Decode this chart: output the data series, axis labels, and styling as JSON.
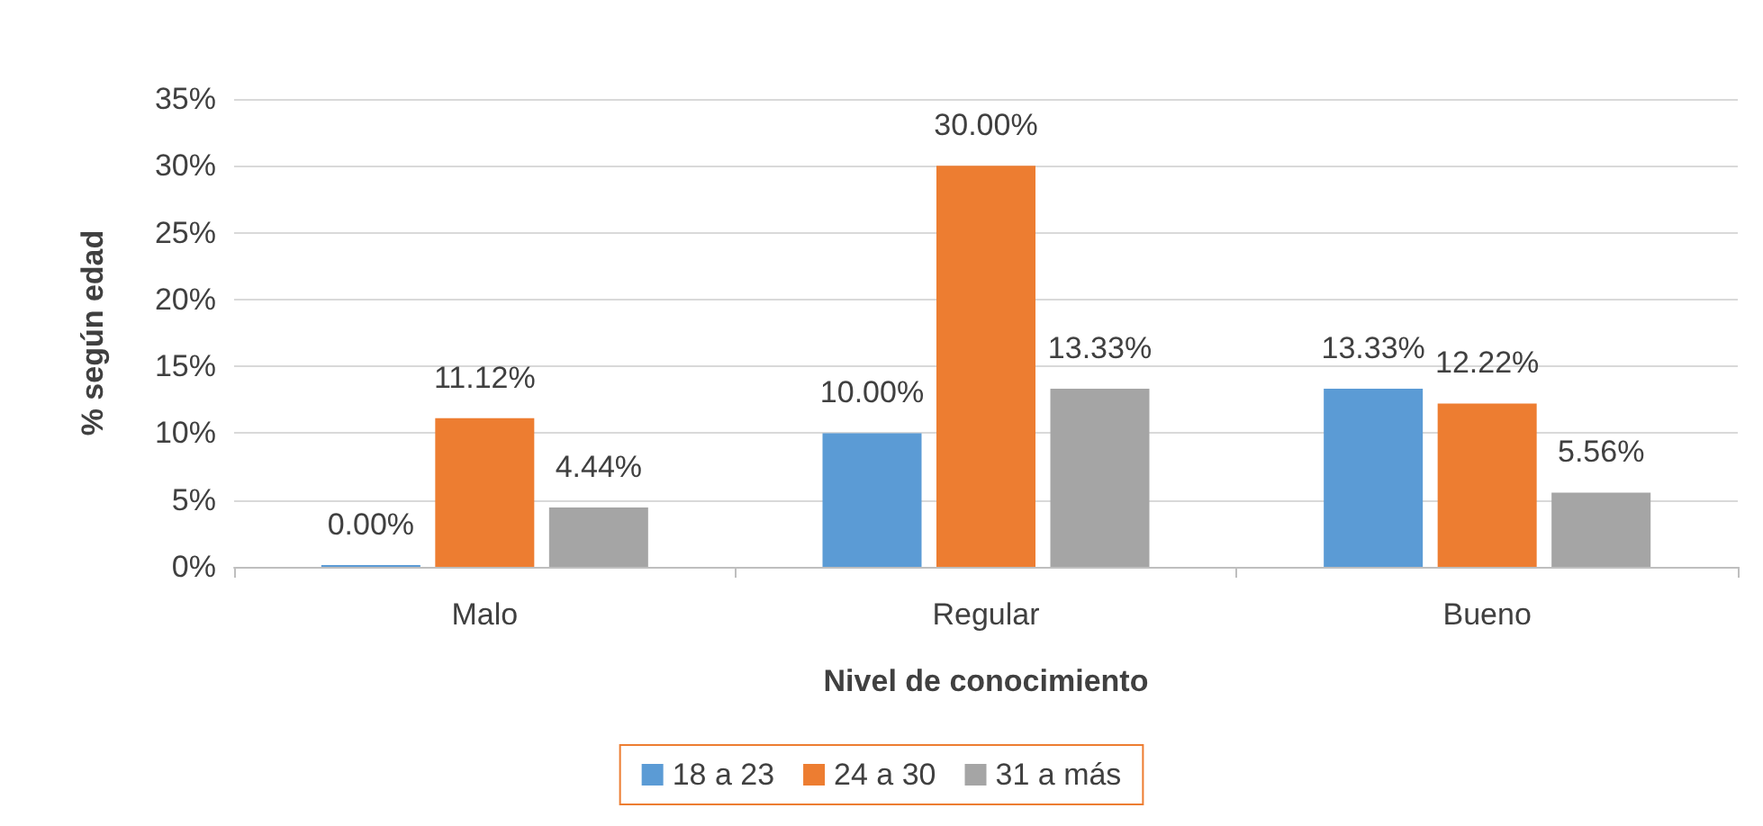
{
  "chart_data": {
    "type": "bar",
    "xlabel": "Nivel de conocimiento",
    "ylabel": "% según edad",
    "categories": [
      "Malo",
      "Regular",
      "Bueno"
    ],
    "series": [
      {
        "name": "18 a 23",
        "color": "#5b9bd5",
        "values": [
          0,
          10,
          13.33
        ],
        "value_labels": [
          "0.00%",
          "10.00%",
          "13.33%"
        ]
      },
      {
        "name": "24 a 30",
        "color": "#ed7d31",
        "values": [
          11.12,
          30,
          12.22
        ],
        "value_labels": [
          "11.12%",
          "30.00%",
          "12.22%"
        ]
      },
      {
        "name": "31 a más",
        "color": "#a5a5a5",
        "values": [
          4.44,
          13.33,
          5.56
        ],
        "value_labels": [
          "4.44%",
          "13.33%",
          "5.56%"
        ]
      }
    ],
    "ylim": [
      0,
      35
    ],
    "yticks": [
      {
        "value": 0,
        "label": "0%"
      },
      {
        "value": 5,
        "label": "5%"
      },
      {
        "value": 10,
        "label": "10%"
      },
      {
        "value": 15,
        "label": "15%"
      },
      {
        "value": 20,
        "label": "20%"
      },
      {
        "value": 25,
        "label": "25%"
      },
      {
        "value": 30,
        "label": "30%"
      },
      {
        "value": 35,
        "label": "35%"
      }
    ],
    "grid": "y",
    "legend": "bottom"
  }
}
